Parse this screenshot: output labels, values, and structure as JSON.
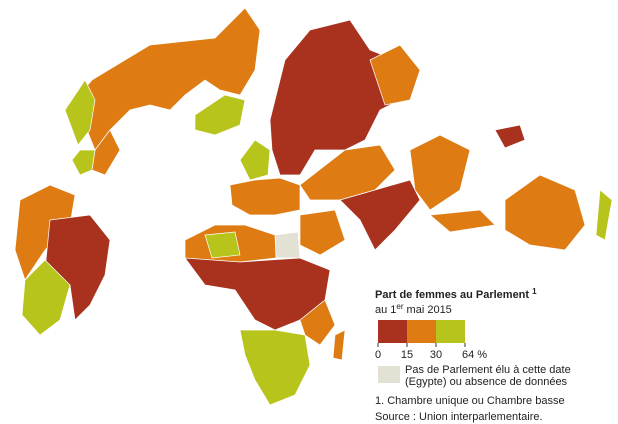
{
  "legend": {
    "title": "Part de femmes au Parlement",
    "title_note": "1",
    "subtitle_prefix": "au 1",
    "subtitle_sup": "er",
    "subtitle_suffix": "mai 2015",
    "classes": [
      {
        "color": "#a8321e"
      },
      {
        "color": "#de7c13"
      },
      {
        "color": "#b7c41c"
      }
    ],
    "ticks": [
      0,
      15,
      30,
      {
        "value": 64,
        "label": "64 %"
      }
    ],
    "no_data": {
      "color": "#e3e0d4",
      "lines": [
        "Pas de Parlement élu à cette date",
        "(Egypte) ou absence de données"
      ]
    }
  },
  "footnote": "1. Chambre unique ou Chambre basse",
  "source": "Source : Union interparlementaire."
}
